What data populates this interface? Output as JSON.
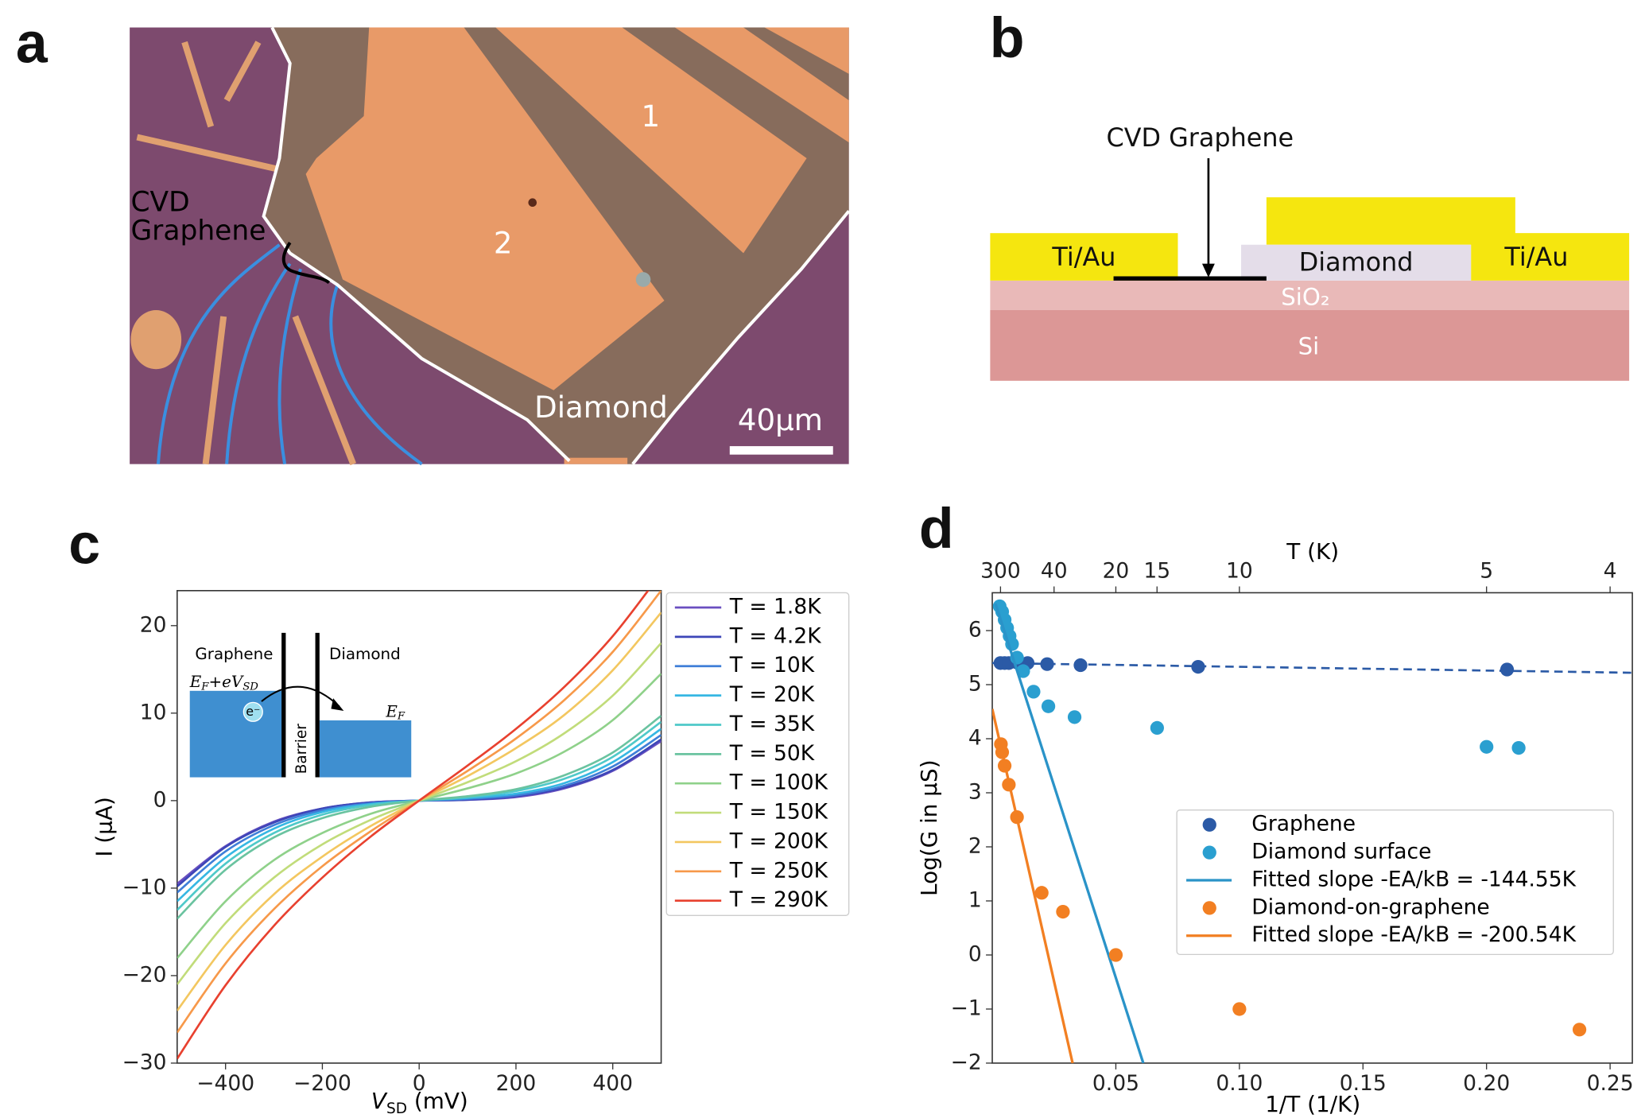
{
  "panel_a": {
    "label": "a",
    "cvd_label": [
      "CVD",
      "Graphene"
    ],
    "electrode_labels": [
      "1",
      "2"
    ],
    "diamond_label": "Diamond",
    "scale_bar_label": "40μm"
  },
  "panel_b": {
    "label": "b",
    "graphene_label": "CVD Graphene",
    "contact_labels": [
      "Ti/Au",
      "Ti/Au"
    ],
    "diamond_label": "Diamond",
    "oxide_label": "SiO₂",
    "substrate_label": "Si"
  },
  "chart_data": [
    {
      "type": "line",
      "panel_label": "c",
      "x_label": {
        "main": "V",
        "sub": "SD",
        "rest": " (mV)"
      },
      "y_label": "I (μA)",
      "x": [
        -500,
        -400,
        -300,
        -200,
        -100,
        0,
        100,
        200,
        300,
        400,
        500
      ],
      "xlim": [
        -500,
        500
      ],
      "ylim": [
        -30,
        24
      ],
      "xticks": [
        {
          "value": -400,
          "label": "−400"
        },
        {
          "value": -200,
          "label": "−200"
        },
        0,
        200,
        400
      ],
      "yticks": [
        {
          "value": -30,
          "label": "−30"
        },
        {
          "value": -20,
          "label": "−20"
        },
        {
          "value": -10,
          "label": "−10"
        },
        0,
        10,
        20
      ],
      "series": [
        {
          "name": "T = 1.8K",
          "color": "#6a4fc0",
          "values": [
            -9.5,
            -5.2,
            -2.4,
            -0.9,
            -0.2,
            0,
            0.1,
            0.4,
            1.4,
            3.4,
            6.8
          ]
        },
        {
          "name": "T = 4.2K",
          "color": "#3d46b8",
          "values": [
            -9.8,
            -5.3,
            -2.5,
            -0.9,
            -0.2,
            0,
            0.1,
            0.5,
            1.5,
            3.5,
            7.0
          ]
        },
        {
          "name": "T = 10K",
          "color": "#3f7fd8",
          "values": [
            -10.5,
            -5.8,
            -2.8,
            -1.1,
            -0.3,
            0,
            0.2,
            0.6,
            1.7,
            3.9,
            7.5
          ]
        },
        {
          "name": "T = 20K",
          "color": "#36b7e3",
          "values": [
            -11.5,
            -6.5,
            -3.2,
            -1.3,
            -0.4,
            0,
            0.3,
            0.8,
            2.0,
            4.4,
            8.2
          ]
        },
        {
          "name": "T = 35K",
          "color": "#4fc9c9",
          "values": [
            -12.5,
            -7.2,
            -3.7,
            -1.6,
            -0.5,
            0,
            0.4,
            1.1,
            2.5,
            5.0,
            9.0
          ]
        },
        {
          "name": "T = 50K",
          "color": "#6ac3a0",
          "values": [
            -13.5,
            -7.9,
            -4.2,
            -2.0,
            -0.7,
            0,
            0.5,
            1.3,
            2.9,
            5.5,
            9.7
          ]
        },
        {
          "name": "T = 100K",
          "color": "#8fd18a",
          "values": [
            -18,
            -11.5,
            -6.8,
            -3.7,
            -1.5,
            0,
            1.4,
            3.1,
            5.6,
            9.2,
            14.5
          ]
        },
        {
          "name": "T = 150K",
          "color": "#c1dc7a",
          "values": [
            -21,
            -14.0,
            -8.8,
            -5.0,
            -2.2,
            0,
            2.1,
            4.5,
            7.7,
            12.0,
            18
          ]
        },
        {
          "name": "T = 200K",
          "color": "#f3c760",
          "values": [
            -24,
            -16.5,
            -10.7,
            -6.4,
            -2.9,
            0,
            2.8,
            6.0,
            9.8,
            14.9,
            21.5
          ]
        },
        {
          "name": "T = 250K",
          "color": "#f7994a",
          "values": [
            -26.5,
            -18.6,
            -12.4,
            -7.5,
            -3.5,
            0,
            3.4,
            7.1,
            11.5,
            17.0,
            24
          ]
        },
        {
          "name": "T = 290K",
          "color": "#e8412f",
          "values": [
            -29.5,
            -21.1,
            -14.3,
            -8.8,
            -4.1,
            0,
            4.0,
            8.2,
            13.0,
            18.8,
            26
          ]
        }
      ],
      "inset": {
        "left_label": "Graphene",
        "right_label": "Diamond",
        "barrier_label": "Barrier",
        "electron_label": "e⁻",
        "left_level": [
          "E",
          "F",
          "+eV",
          "SD"
        ],
        "right_level": [
          "E",
          "F"
        ]
      }
    },
    {
      "type": "scatter",
      "panel_label": "d",
      "x_label": "1/T (1/K)",
      "y_label": "Log(G in μS)",
      "x2_label": "T (K)",
      "xlim": [
        0,
        0.259
      ],
      "ylim": [
        -2,
        6.7
      ],
      "xticks": [
        0.05,
        {
          "value": 0.1,
          "label": "0.10"
        },
        0.15,
        {
          "value": 0.2,
          "label": "0.20"
        },
        0.25
      ],
      "yticks": [
        {
          "value": -2,
          "label": "−2"
        },
        {
          "value": -1,
          "label": "−1"
        },
        0,
        1,
        2,
        3,
        4,
        5,
        6
      ],
      "x2ticks": [
        300,
        40,
        20,
        15,
        10,
        5,
        4
      ],
      "series": [
        {
          "name": "Graphene",
          "color": "#2b5aa6",
          "mode": "markers",
          "x": [
            0.0033,
            0.005,
            0.0067,
            0.01,
            0.0143,
            0.0222,
            0.0357,
            0.0833,
            0.2083
          ],
          "values": [
            5.4,
            5.4,
            5.4,
            5.41,
            5.4,
            5.38,
            5.36,
            5.33,
            5.28
          ]
        },
        {
          "name": "Diamond surface",
          "color": "#2a9fd0",
          "mode": "markers",
          "x": [
            0.003,
            0.004,
            0.005,
            0.006,
            0.007,
            0.008,
            0.01,
            0.0125,
            0.0167,
            0.0227,
            0.0333,
            0.0667,
            0.2,
            0.213
          ],
          "values": [
            6.45,
            6.35,
            6.2,
            6.05,
            5.9,
            5.75,
            5.5,
            5.25,
            4.87,
            4.6,
            4.4,
            4.2,
            3.85,
            3.83
          ]
        },
        {
          "name": "Fitted slope -EA/kB = -144.55K",
          "color": "#2a93c8",
          "mode": "line",
          "x": [
            0.0013,
            0.0611
          ],
          "values": [
            6.5,
            -2
          ]
        },
        {
          "name": "Diamond-on-graphene",
          "color": "#f27f22",
          "mode": "markers",
          "x": [
            0.0035,
            0.004,
            0.005,
            0.0067,
            0.01,
            0.02,
            0.0286,
            0.05,
            0.1,
            0.2376
          ],
          "values": [
            3.9,
            3.75,
            3.5,
            3.15,
            2.55,
            1.15,
            0.8,
            0,
            -1,
            -1.38
          ]
        },
        {
          "name": "Fitted slope -EA/kB = -200.54K",
          "color": "#f27f22",
          "mode": "line",
          "x": [
            0,
            0.0325
          ],
          "values": [
            4.55,
            -2
          ]
        }
      ],
      "dashed_fit": {
        "color": "#2b5aa6",
        "x": [
          0,
          0.259
        ],
        "values": [
          5.4,
          5.22
        ]
      }
    }
  ]
}
